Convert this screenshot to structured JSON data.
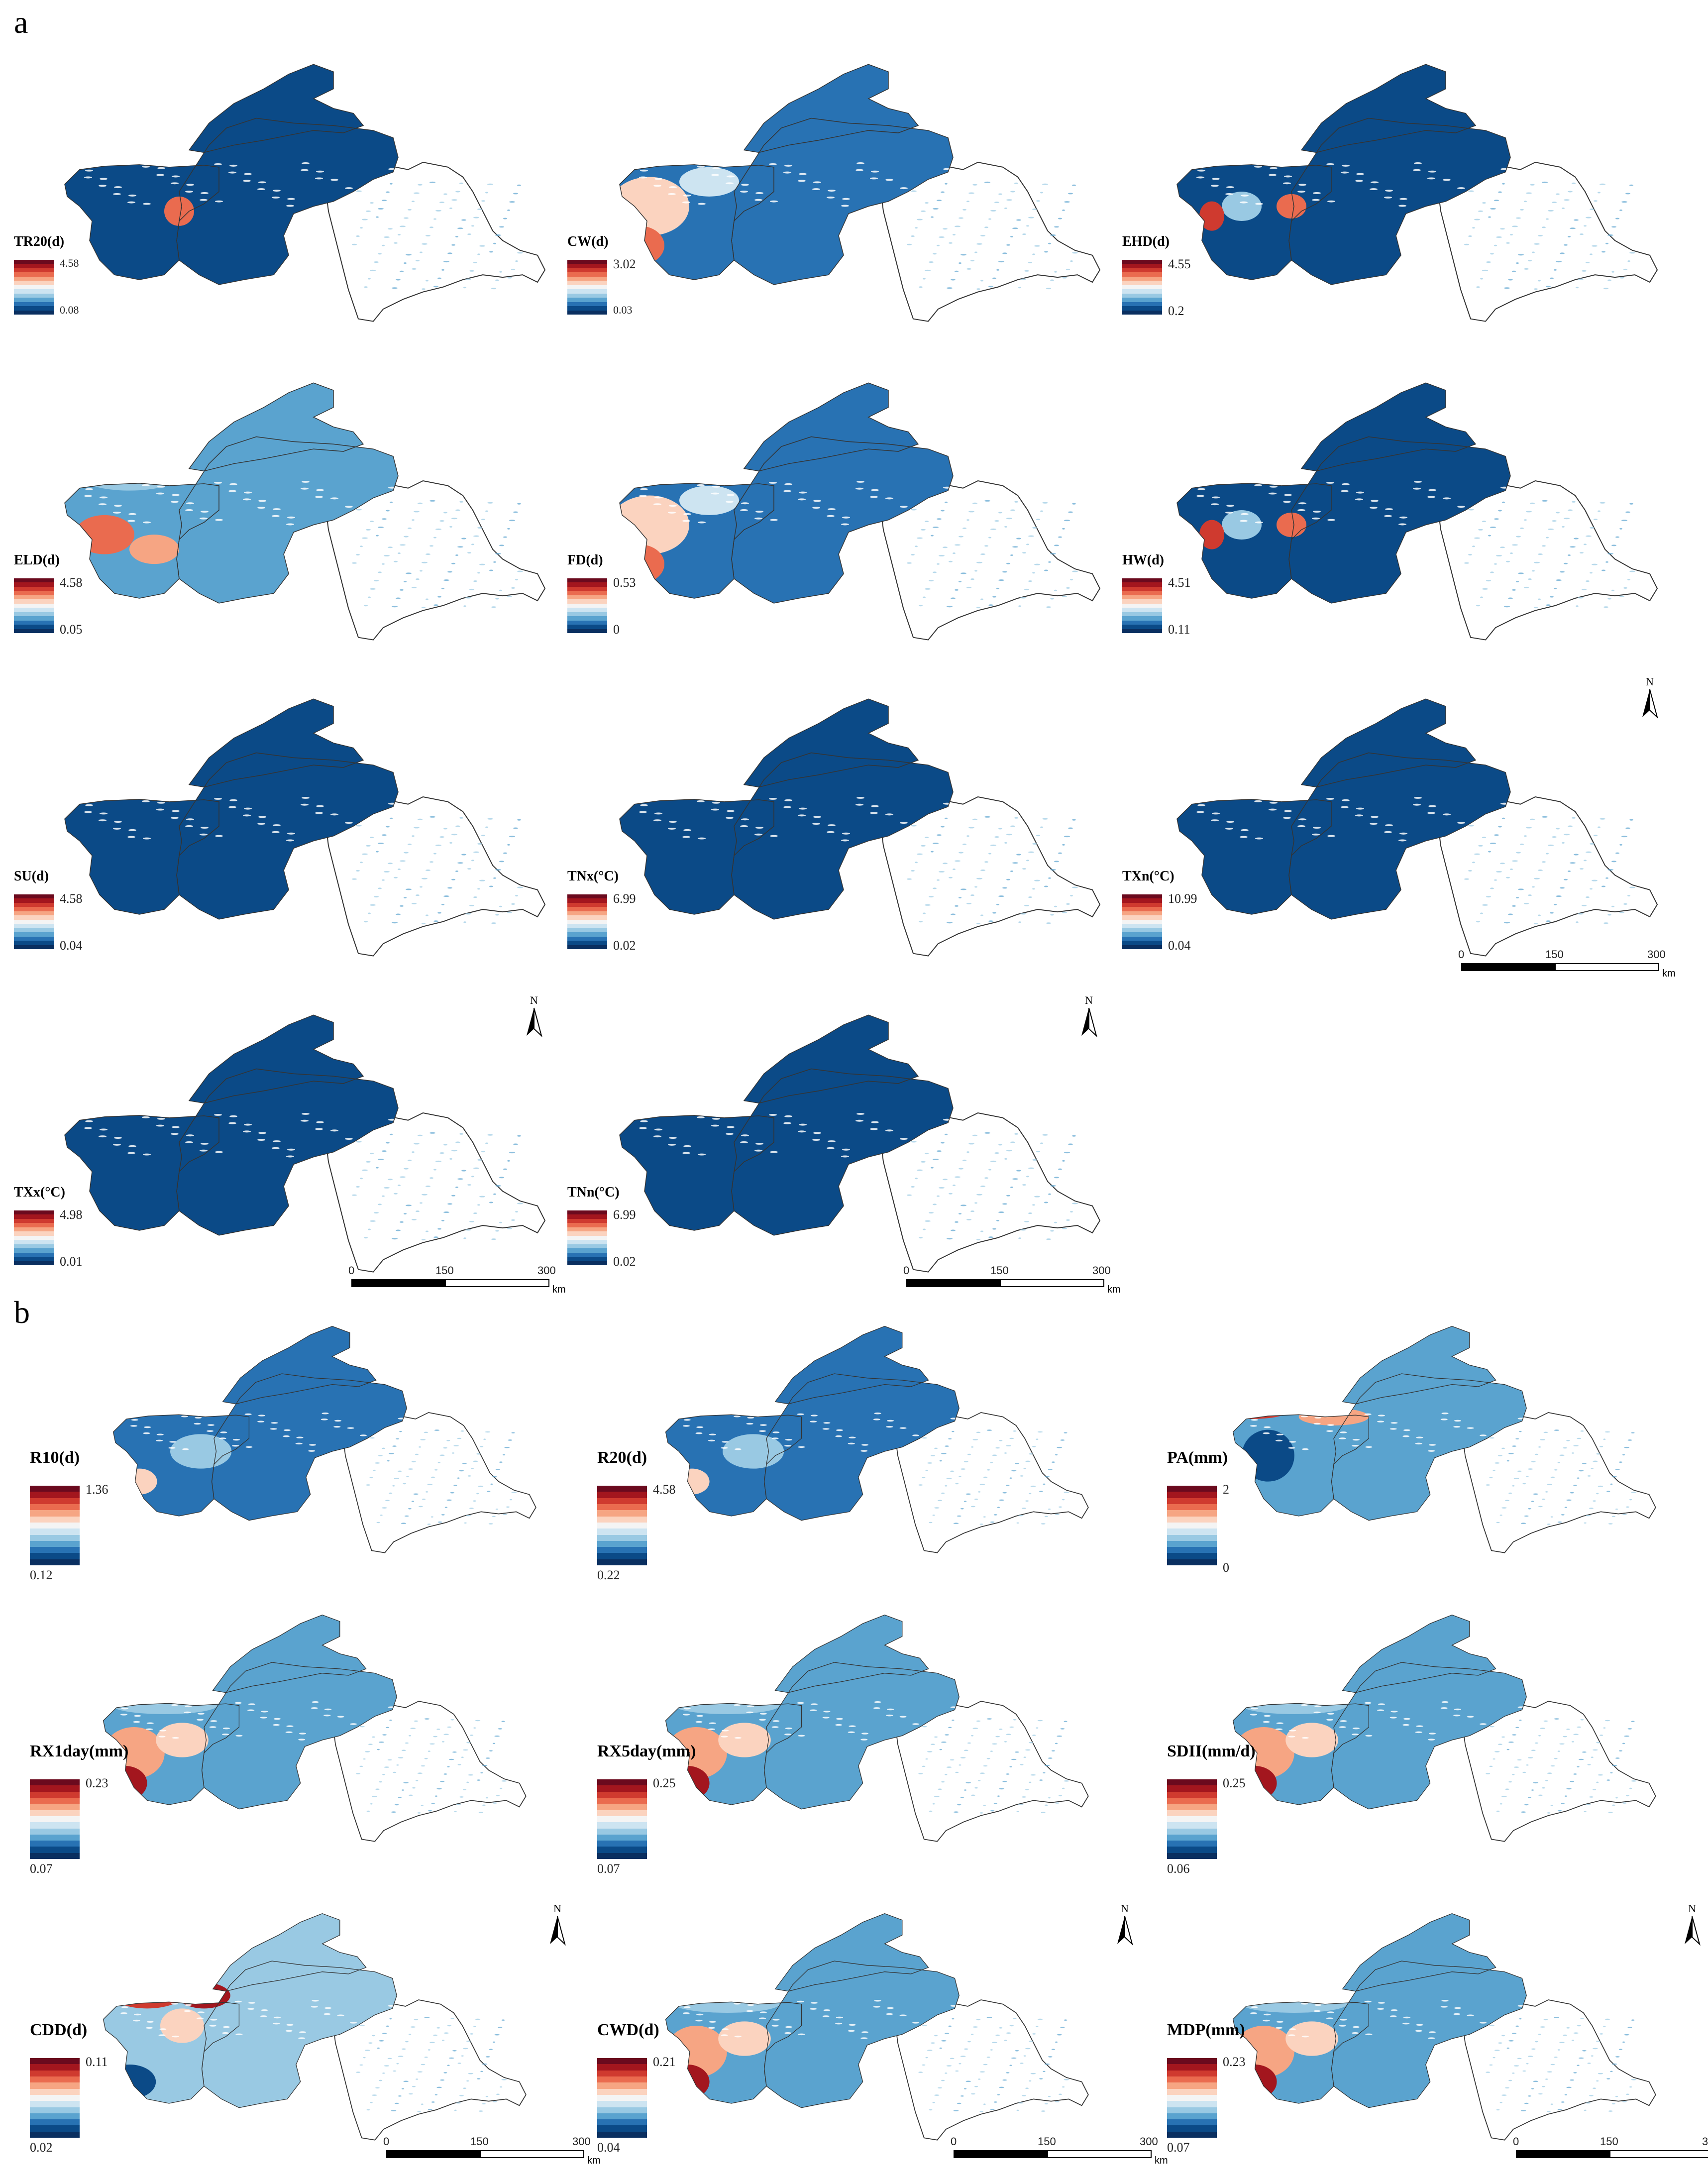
{
  "panel_a": {
    "letter": "a",
    "maps": [
      {
        "id": "tr20",
        "title": "TR20(d)",
        "max": "4.58",
        "min": "0.08"
      },
      {
        "id": "cw",
        "title": "CW(d)",
        "max": "3.02",
        "min": "0.03"
      },
      {
        "id": "ehd",
        "title": "EHD(d)",
        "max": "4.55",
        "min": "0.2"
      },
      {
        "id": "eld",
        "title": "ELD(d)",
        "max": "4.58",
        "min": "0.05"
      },
      {
        "id": "fd",
        "title": "FD(d)",
        "max": "0.53",
        "min": "0"
      },
      {
        "id": "hw",
        "title": "HW(d)",
        "max": "4.51",
        "min": "0.11"
      },
      {
        "id": "su",
        "title": "SU(d)",
        "max": "4.58",
        "min": "0.04"
      },
      {
        "id": "tnx",
        "title": "TNx(°C)",
        "max": "6.99",
        "min": "0.02"
      },
      {
        "id": "txn",
        "title": "TXn(°C)",
        "max": "10.99",
        "min": "0.04"
      },
      {
        "id": "txx",
        "title": "TXx(°C)",
        "max": "4.98",
        "min": "0.01"
      },
      {
        "id": "tnn",
        "title": "TNn(°C)",
        "max": "6.99",
        "min": "0.02"
      }
    ]
  },
  "panel_b": {
    "letter": "b",
    "maps": [
      {
        "id": "r10",
        "title": "R10(d)",
        "max": "1.36",
        "min": "0.12"
      },
      {
        "id": "r20",
        "title": "R20(d)",
        "max": "4.58",
        "min": "0.22"
      },
      {
        "id": "pa",
        "title": "PA(mm)",
        "max": "2",
        "min": "0"
      },
      {
        "id": "rx1day",
        "title": "RX1day(mm)",
        "max": "0.23",
        "min": "0.07"
      },
      {
        "id": "rx5day",
        "title": "RX5day(mm)",
        "max": "0.25",
        "min": "0.07"
      },
      {
        "id": "sdii",
        "title": "SDII(mm/d)",
        "max": "0.25",
        "min": "0.06"
      },
      {
        "id": "cdd",
        "title": "CDD(d)",
        "max": "0.11",
        "min": "0.02"
      },
      {
        "id": "cwd",
        "title": "CWD(d)",
        "max": "0.21",
        "min": "0.04"
      },
      {
        "id": "mdp",
        "title": "MDP(mm)",
        "max": "0.23",
        "min": "0.07"
      }
    ]
  },
  "north_label": "N",
  "scale": {
    "t0": "0",
    "t1": "150",
    "t2": "300",
    "unit": "km"
  },
  "colors": {
    "ramp": [
      "#6b0a1e",
      "#a3161e",
      "#cf3a2f",
      "#ea6b4f",
      "#f6a583",
      "#fbd3bf",
      "#f4f4f4",
      "#cde4f1",
      "#99c9e3",
      "#5aa3cf",
      "#2872b3",
      "#0b4a87",
      "#0a2f60"
    ],
    "outline": "#333333"
  }
}
